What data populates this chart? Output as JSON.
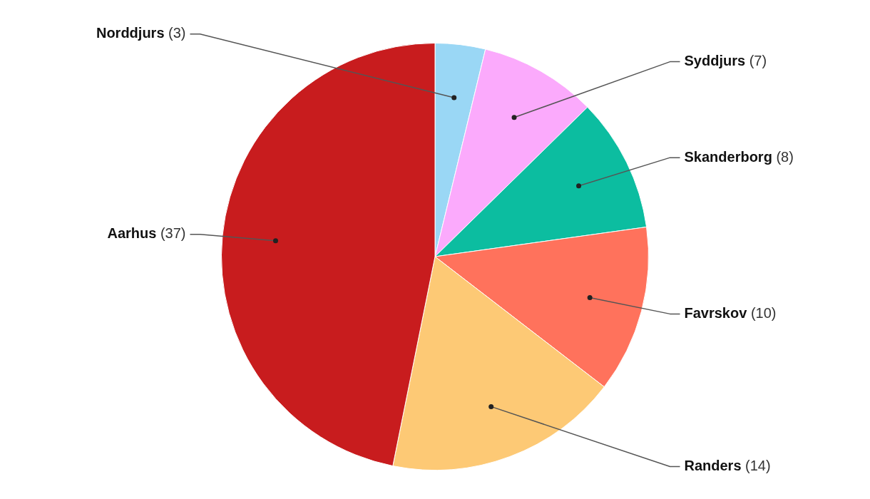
{
  "chart_data": {
    "type": "pie",
    "categories": [
      "Norddjurs",
      "Syddjurs",
      "Skanderborg",
      "Favrskov",
      "Randers",
      "Aarhus"
    ],
    "values": [
      3,
      7,
      8,
      10,
      14,
      37
    ],
    "colors": [
      "#9ad7f5",
      "#fbaafc",
      "#0cbda0",
      "#ff725c",
      "#fdc975",
      "#c81c1e"
    ],
    "value_labels": [
      "(3)",
      "(7)",
      "(8)",
      "(10)",
      "(14)",
      "(37)"
    ],
    "legend": false
  }
}
